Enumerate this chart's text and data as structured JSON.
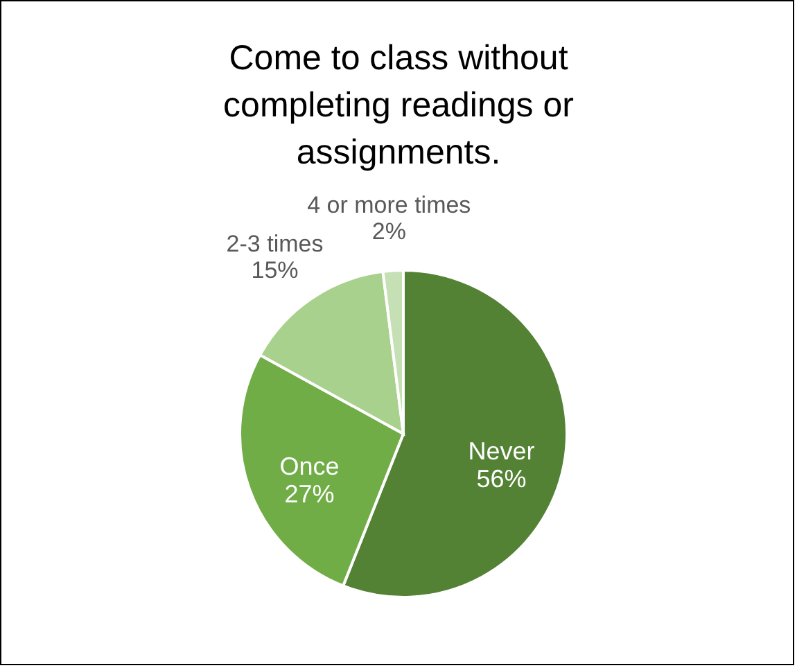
{
  "chart_data": {
    "type": "pie",
    "title": "Come to class without completing readings or assignments.",
    "categories": [
      "Never",
      "Once",
      "2-3 times",
      "4 or more times"
    ],
    "values": [
      56,
      27,
      15,
      2
    ],
    "value_labels": [
      "56%",
      "27%",
      "15%",
      "2%"
    ],
    "colors": [
      "#548235",
      "#70ad47",
      "#a9d18e",
      "#c5e0b4"
    ],
    "legend": false
  }
}
